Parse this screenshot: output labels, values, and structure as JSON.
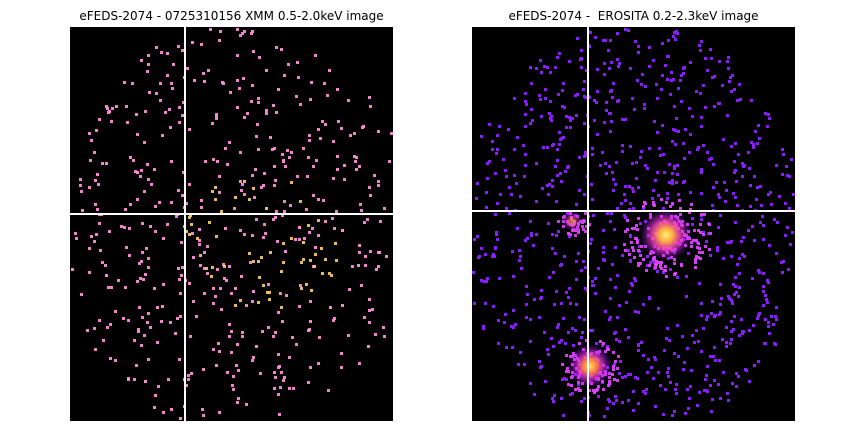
{
  "figure": {
    "left_panel": {
      "title": "eFEDS-2074 - 0725310156 XMM 0.5-2.0keV image",
      "background": "#000000",
      "photon_color": "#ff8ad8",
      "hot_color": "#ffd060",
      "crosshair_color": "#ffffff"
    },
    "right_panel": {
      "title": "eFEDS-2074 -  EROSITA 0.2-2.3keV image",
      "background": "#000000",
      "photon_color": "#8a1cff",
      "warm_color": "#e040ff",
      "hot_color": "#ffe066",
      "crosshair_color": "#ffffff"
    }
  }
}
